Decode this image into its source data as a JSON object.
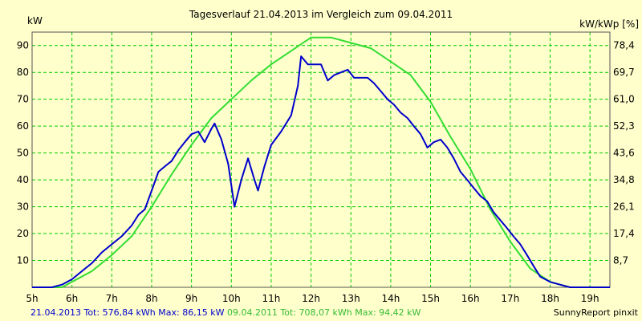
{
  "chart_data": {
    "type": "line",
    "title": "Tagesverlauf 21.04.2013 im Vergleich zum 09.04.2011",
    "ylabel_left": "kW",
    "ylabel_right": "kW/kWp [%]",
    "x_tick_labels": [
      "5h",
      "6h",
      "7h",
      "8h",
      "9h",
      "10h",
      "11h",
      "12h",
      "13h",
      "14h",
      "15h",
      "16h",
      "17h",
      "18h",
      "19h"
    ],
    "x_range_hours": [
      5,
      19.5
    ],
    "ylim": [
      0,
      95
    ],
    "y_ticks_left": [
      10,
      20,
      30,
      40,
      50,
      60,
      70,
      80,
      90
    ],
    "y_ticks_right": [
      {
        "value": 10,
        "label": "8,7"
      },
      {
        "value": 20,
        "label": "17,4"
      },
      {
        "value": 30,
        "label": "26,1"
      },
      {
        "value": 40,
        "label": "34,8"
      },
      {
        "value": 50,
        "label": "43,6"
      },
      {
        "value": 60,
        "label": "52,3"
      },
      {
        "value": 70,
        "label": "61,0"
      },
      {
        "value": 80,
        "label": "69,7"
      },
      {
        "value": 90,
        "label": "78,4"
      }
    ],
    "grid": true,
    "background_color": "#ffffcc",
    "grid_color": "#00cc00",
    "series": [
      {
        "color": "#0000cc",
        "points": [
          [
            5.0,
            0
          ],
          [
            5.5,
            0
          ],
          [
            5.75,
            1
          ],
          [
            6.0,
            3
          ],
          [
            6.25,
            6
          ],
          [
            6.5,
            9
          ],
          [
            6.75,
            13
          ],
          [
            7.0,
            16
          ],
          [
            7.25,
            19
          ],
          [
            7.5,
            23
          ],
          [
            7.67,
            27
          ],
          [
            7.83,
            29
          ],
          [
            8.0,
            36
          ],
          [
            8.17,
            43
          ],
          [
            8.33,
            45
          ],
          [
            8.5,
            47
          ],
          [
            8.67,
            51
          ],
          [
            8.83,
            54
          ],
          [
            9.0,
            57
          ],
          [
            9.17,
            58
          ],
          [
            9.33,
            54
          ],
          [
            9.5,
            59
          ],
          [
            9.58,
            61
          ],
          [
            9.75,
            55
          ],
          [
            9.92,
            46
          ],
          [
            10.08,
            30
          ],
          [
            10.25,
            40
          ],
          [
            10.42,
            48
          ],
          [
            10.58,
            40
          ],
          [
            10.67,
            36
          ],
          [
            10.83,
            45
          ],
          [
            11.0,
            53
          ],
          [
            11.25,
            58
          ],
          [
            11.5,
            64
          ],
          [
            11.67,
            75
          ],
          [
            11.75,
            86
          ],
          [
            11.92,
            83
          ],
          [
            12.08,
            83
          ],
          [
            12.25,
            83
          ],
          [
            12.42,
            77
          ],
          [
            12.58,
            79
          ],
          [
            12.75,
            80
          ],
          [
            12.92,
            81
          ],
          [
            13.08,
            78
          ],
          [
            13.25,
            78
          ],
          [
            13.42,
            78
          ],
          [
            13.58,
            76
          ],
          [
            13.75,
            73
          ],
          [
            13.92,
            70
          ],
          [
            14.08,
            68
          ],
          [
            14.25,
            65
          ],
          [
            14.42,
            63
          ],
          [
            14.58,
            60
          ],
          [
            14.75,
            57
          ],
          [
            14.92,
            52
          ],
          [
            15.08,
            54
          ],
          [
            15.25,
            55
          ],
          [
            15.42,
            52
          ],
          [
            15.58,
            48
          ],
          [
            15.75,
            43
          ],
          [
            15.92,
            40
          ],
          [
            16.08,
            37
          ],
          [
            16.25,
            34
          ],
          [
            16.42,
            32
          ],
          [
            16.58,
            28
          ],
          [
            16.75,
            25
          ],
          [
            16.92,
            22
          ],
          [
            17.08,
            19
          ],
          [
            17.25,
            16
          ],
          [
            17.42,
            12
          ],
          [
            17.58,
            8
          ],
          [
            17.75,
            4
          ],
          [
            18.0,
            2
          ],
          [
            18.25,
            1
          ],
          [
            18.5,
            0
          ],
          [
            19.0,
            0
          ],
          [
            19.5,
            0
          ]
        ]
      },
      {
        "color": "#33dd33",
        "points": [
          [
            5.0,
            0
          ],
          [
            5.75,
            0
          ],
          [
            6.0,
            2
          ],
          [
            6.5,
            6
          ],
          [
            7.0,
            12
          ],
          [
            7.5,
            19
          ],
          [
            8.0,
            30
          ],
          [
            8.5,
            42
          ],
          [
            9.0,
            53
          ],
          [
            9.5,
            63
          ],
          [
            10.0,
            70
          ],
          [
            10.5,
            77
          ],
          [
            11.0,
            83
          ],
          [
            11.5,
            88
          ],
          [
            12.0,
            93
          ],
          [
            12.5,
            93
          ],
          [
            13.0,
            91
          ],
          [
            13.5,
            89
          ],
          [
            14.0,
            84
          ],
          [
            14.5,
            79
          ],
          [
            15.0,
            69
          ],
          [
            15.5,
            56
          ],
          [
            16.0,
            44
          ],
          [
            16.5,
            29
          ],
          [
            17.0,
            17
          ],
          [
            17.5,
            7
          ],
          [
            18.0,
            2
          ],
          [
            18.5,
            0
          ],
          [
            19.0,
            0
          ],
          [
            19.5,
            0
          ]
        ]
      }
    ]
  },
  "footer": {
    "left_series1": "21.04.2013 Tot: 576,84 kWh Max: 86,15 kW",
    "left_series2": "09.04.2011 Tot: 708,07 kWh Max: 94,42 kW",
    "right": "SunnyReport pinxit"
  },
  "colors": {
    "series1_text": "#0000cc",
    "series2_text": "#33bb33"
  }
}
